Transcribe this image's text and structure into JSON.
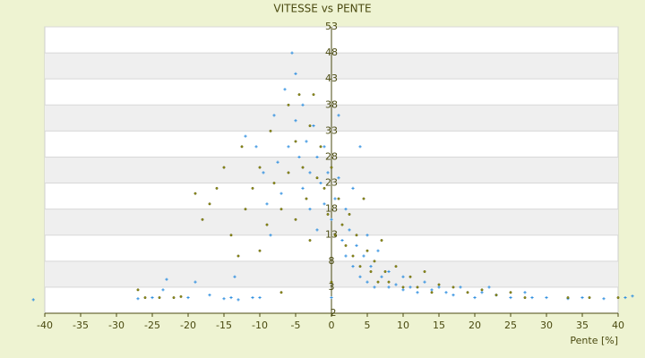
{
  "chart_data": {
    "type": "scatter",
    "title": "VITESSE vs PENTE",
    "x_label": "Pente [%]",
    "xlim": [
      -40,
      40
    ],
    "xticks": [
      -40,
      -35,
      -30,
      -25,
      -20,
      -15,
      -10,
      -5,
      0,
      5,
      10,
      15,
      20,
      25,
      30,
      35,
      40
    ],
    "ylim": [
      -2,
      53
    ],
    "yticks": [
      -2,
      3,
      8,
      13,
      18,
      23,
      28,
      33,
      38,
      43,
      48,
      53
    ],
    "grid": true,
    "series": [
      {
        "color": "#2f8fe0",
        "x": [
          -41.6,
          -27,
          -25,
          -23.5,
          -23,
          -20,
          -19,
          -17,
          -15,
          -14,
          -13.5,
          -13,
          -12,
          -11,
          -10.5,
          -10,
          -9.5,
          -9,
          -8.5,
          -8,
          -7.5,
          -7,
          -6.5,
          -6,
          -5.5,
          -5,
          -5,
          -4.5,
          -4,
          -4,
          -3.5,
          -3,
          -3,
          -2.5,
          -2,
          -2,
          -1.5,
          -1,
          -1,
          -0.5,
          0,
          0,
          0.5,
          1,
          1,
          1.5,
          2,
          2,
          2.5,
          3,
          3,
          3.5,
          4,
          4,
          4.5,
          5,
          5,
          5.5,
          6,
          6.5,
          7,
          8,
          8,
          9,
          10,
          10,
          11,
          12,
          13,
          14,
          15,
          16,
          17,
          18,
          20,
          21,
          22,
          23,
          25,
          27,
          28,
          30,
          33,
          35,
          38,
          41,
          42
        ],
        "values": [
          0.6,
          0.8,
          1,
          2.5,
          4.5,
          1,
          4,
          1.5,
          0.8,
          1,
          5,
          0.6,
          32,
          1,
          30,
          1,
          25,
          19,
          13,
          36,
          27,
          21,
          41,
          30,
          48,
          44,
          35,
          28,
          22,
          38,
          31,
          25,
          18,
          34,
          28,
          14,
          23,
          30,
          19,
          25,
          1,
          16,
          20,
          36,
          24,
          12,
          18,
          9,
          14,
          22,
          7,
          11,
          30,
          5,
          9,
          13,
          4,
          7,
          3,
          10,
          5,
          3,
          6,
          3.5,
          2.5,
          5,
          3,
          2,
          4,
          2.5,
          3,
          2,
          1.5,
          3,
          1,
          2,
          3,
          1.5,
          1,
          2,
          1,
          1,
          0.8,
          1,
          0.8,
          1,
          1.3
        ]
      },
      {
        "color": "#8c8a14",
        "x": [
          -27,
          -26,
          -24,
          -22,
          -21,
          -19,
          -18,
          -17,
          -16,
          -15,
          -14,
          -13,
          -12.5,
          -12,
          -11,
          -10,
          -10,
          -9,
          -8.5,
          -8,
          -7,
          -7,
          -6,
          -6,
          -5,
          -5,
          -4.5,
          -4,
          -3.5,
          -3,
          -3,
          -2.5,
          -2,
          -1.5,
          -1,
          -0.5,
          0,
          0,
          0.5,
          1,
          1.5,
          2,
          2.5,
          3,
          3.5,
          4,
          4.5,
          5,
          5.5,
          6,
          6.5,
          7,
          7.5,
          8,
          9,
          10,
          11,
          12,
          13,
          14,
          15,
          17,
          19,
          21,
          23,
          25,
          27,
          33,
          36,
          40
        ],
        "values": [
          2.5,
          1,
          1,
          1,
          1.2,
          21,
          16,
          19,
          22,
          26,
          13,
          9,
          30,
          18,
          22,
          26,
          10,
          15,
          33,
          23,
          18,
          2,
          38,
          25,
          16,
          31,
          40,
          26,
          20,
          34,
          12,
          40,
          24,
          30,
          22,
          17,
          4,
          26,
          13,
          20,
          15,
          11,
          17,
          9,
          13,
          7,
          20,
          10,
          6,
          8,
          4,
          12,
          6,
          4,
          7,
          3,
          5,
          3,
          6,
          2,
          3.5,
          3,
          2,
          2.5,
          1.5,
          2,
          1,
          1,
          1,
          1
        ]
      }
    ]
  }
}
